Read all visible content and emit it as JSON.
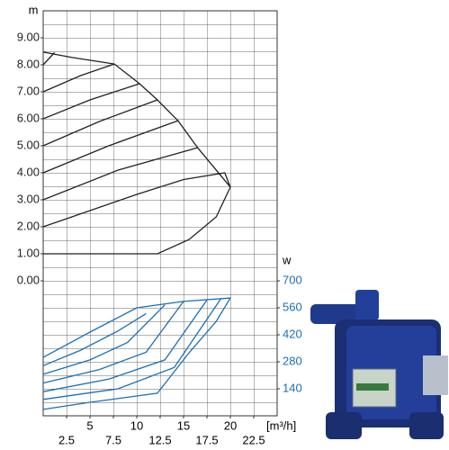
{
  "chart_data": [
    {
      "type": "line",
      "y_label": "m",
      "color": "#222222",
      "tick_color": "#222222",
      "xlim": [
        0,
        25
      ],
      "ylim": [
        0,
        10
      ],
      "yticks": [
        {
          "value": 0,
          "label": "0.00"
        },
        {
          "value": 1,
          "label": "1.00"
        },
        {
          "value": 2,
          "label": "2.00"
        },
        {
          "value": 3,
          "label": "3.00"
        },
        {
          "value": 4,
          "label": "4.00"
        },
        {
          "value": 5,
          "label": "5.00"
        },
        {
          "value": 6,
          "label": "6.00"
        },
        {
          "value": 7,
          "label": "7.00"
        },
        {
          "value": 8,
          "label": "8.00"
        },
        {
          "value": 9,
          "label": "9.00"
        }
      ],
      "series": [
        {
          "x": [
            0,
            3.1,
            7.6,
            10.3,
            12.2,
            14.4,
            16.5,
            20,
            18.5,
            15.6,
            12.2,
            0
          ],
          "values": [
            8.47,
            8.27,
            8.03,
            7.3,
            6.7,
            5.93,
            4.93,
            3.47,
            2.37,
            1.53,
            1.0,
            1.0
          ]
        },
        {
          "x": [
            0,
            1.2
          ],
          "values": [
            8.0,
            8.45
          ]
        },
        {
          "x": [
            0,
            4,
            7.6
          ],
          "values": [
            7.0,
            7.6,
            8.03
          ]
        },
        {
          "x": [
            0,
            5,
            10.3
          ],
          "values": [
            6.0,
            6.7,
            7.3
          ]
        },
        {
          "x": [
            0,
            6,
            12.2
          ],
          "values": [
            5.0,
            5.9,
            6.7
          ]
        },
        {
          "x": [
            0,
            7,
            14.4
          ],
          "values": [
            4.0,
            5.0,
            5.93
          ]
        },
        {
          "x": [
            0,
            8,
            16.5
          ],
          "values": [
            3.0,
            4.1,
            4.93
          ]
        },
        {
          "x": [
            0,
            10,
            15,
            19.4,
            20
          ],
          "values": [
            2.0,
            3.2,
            3.75,
            4.0,
            3.47
          ]
        }
      ]
    },
    {
      "type": "line",
      "y_label": "w",
      "x_label": "[m³/h]",
      "color": "#1a6fb5",
      "tick_color": "#1a6fb5",
      "xlim": [
        0,
        25
      ],
      "ylim": [
        0,
        700
      ],
      "xticks": [
        2.5,
        5,
        7.5,
        10,
        12.5,
        15,
        17.5,
        20,
        22.5
      ],
      "yticks": [
        140,
        280,
        420,
        560,
        700
      ],
      "series": [
        {
          "x": [
            0,
            5,
            10,
            15,
            20,
            18.5,
            15.6,
            12.2,
            5,
            0
          ],
          "values": [
            303,
            434,
            560,
            593,
            611,
            490,
            327,
            117,
            70,
            33
          ]
        },
        {
          "x": [
            0,
            4,
            8,
            11
          ],
          "values": [
            260,
            340,
            440,
            530
          ]
        },
        {
          "x": [
            0,
            5,
            9,
            13
          ],
          "values": [
            215,
            290,
            380,
            575
          ]
        },
        {
          "x": [
            0,
            6,
            11,
            15
          ],
          "values": [
            170,
            240,
            330,
            593
          ]
        },
        {
          "x": [
            0,
            7,
            13,
            17.5
          ],
          "values": [
            125,
            190,
            290,
            600
          ]
        },
        {
          "x": [
            0,
            8,
            14,
            19
          ],
          "values": [
            85,
            140,
            250,
            608
          ]
        }
      ]
    }
  ]
}
